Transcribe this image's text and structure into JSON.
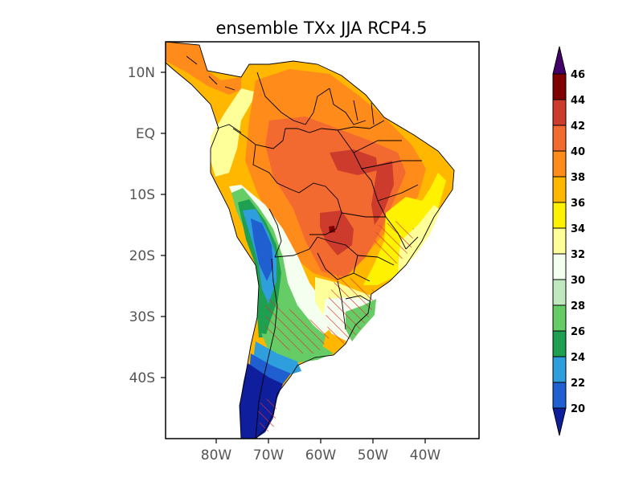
{
  "title": "ensemble TXx JJA RCP4.5",
  "axes": {
    "y_ticks": [
      {
        "label": "10N",
        "lat": 10
      },
      {
        "label": "EQ",
        "lat": 0
      },
      {
        "label": "10S",
        "lat": -10
      },
      {
        "label": "20S",
        "lat": -20
      },
      {
        "label": "30S",
        "lat": -30
      },
      {
        "label": "40S",
        "lat": -40
      }
    ],
    "x_ticks": [
      {
        "label": "80W",
        "lon": -80
      },
      {
        "label": "70W",
        "lon": -70
      },
      {
        "label": "60W",
        "lon": -60
      },
      {
        "label": "50W",
        "lon": -50
      },
      {
        "label": "40W",
        "lon": -40
      }
    ]
  },
  "colorbar": {
    "levels": [
      "20",
      "22",
      "24",
      "26",
      "28",
      "30",
      "32",
      "34",
      "36",
      "38",
      "40",
      "42",
      "44",
      "46"
    ],
    "colors": [
      "#0f1e9c",
      "#1f5fd0",
      "#2e9fdc",
      "#1fa050",
      "#66cc66",
      "#bfe8bf",
      "#f5fff0",
      "#ffff99",
      "#fff200",
      "#ffb700",
      "#ff8c1a",
      "#f26a30",
      "#cc3b2b",
      "#800000",
      "#9966cc",
      "#44006a"
    ],
    "hatch_color": "#e03030"
  }
}
